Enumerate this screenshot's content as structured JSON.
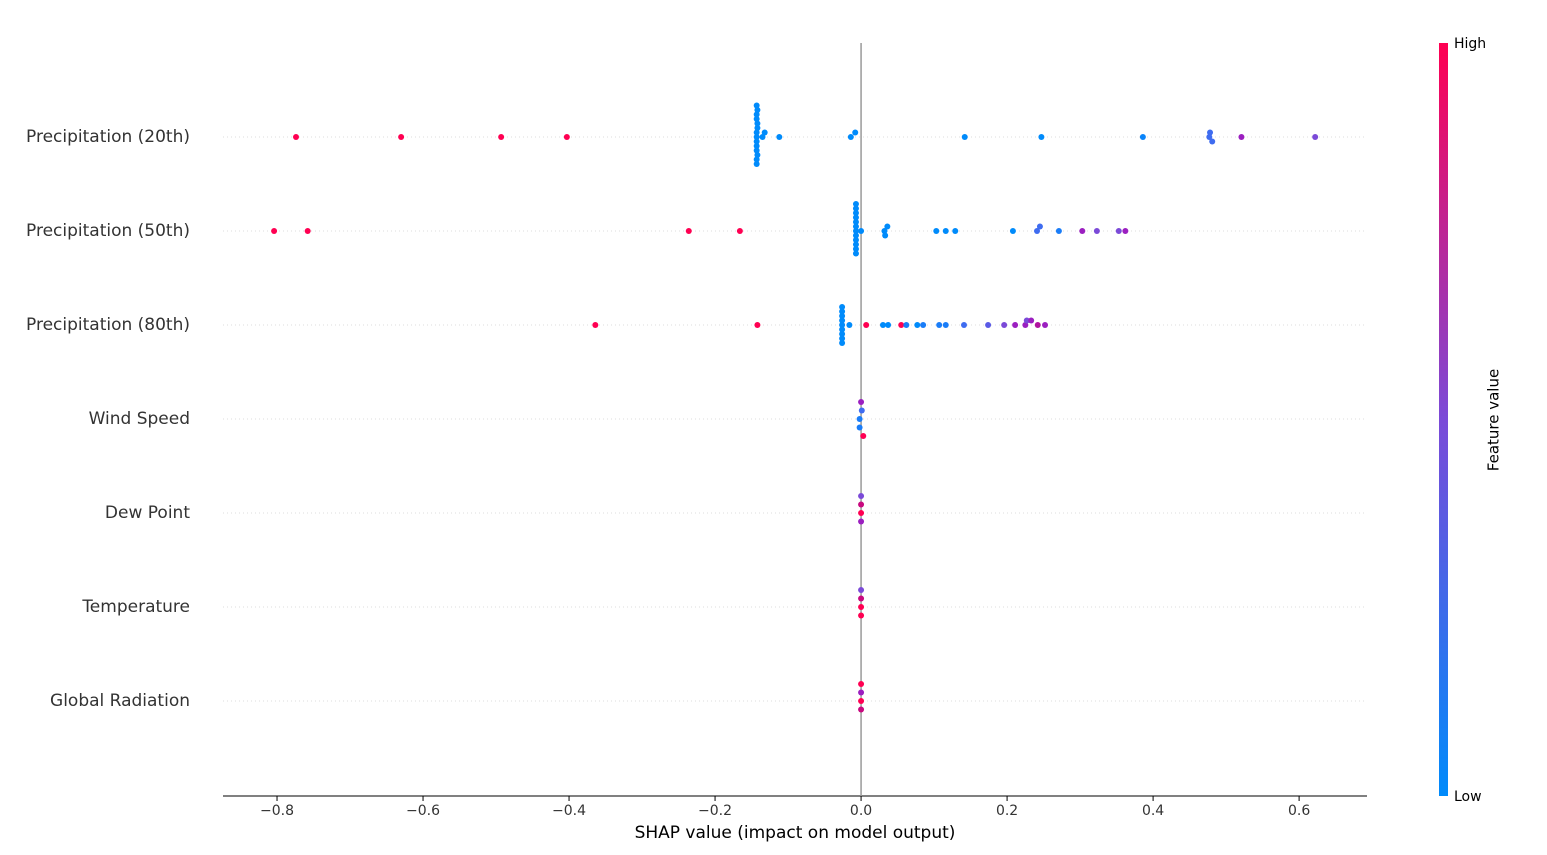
{
  "chart_data": {
    "type": "beeswarm",
    "xlabel": "SHAP value (impact on model output)",
    "xlim": [
      -0.874,
      0.693
    ],
    "xticks": [
      {
        "value": -0.8,
        "label": "−0.8"
      },
      {
        "value": -0.6,
        "label": "−0.6"
      },
      {
        "value": -0.4,
        "label": "−0.4"
      },
      {
        "value": -0.2,
        "label": "−0.2"
      },
      {
        "value": 0,
        "label": "0.0"
      },
      0.2,
      0.4,
      0.6
    ],
    "colorbar": {
      "label": "Feature value",
      "high": "High",
      "low": "Low",
      "low_color": "#008bfb",
      "mid_color": "#7b4ad8",
      "high_color": "#ff0052"
    },
    "series": [
      {
        "name": "Precipitation (20th)",
        "values": [
          -0.774,
          -0.63,
          -0.493,
          -0.403,
          -0.143,
          -0.143,
          -0.143,
          -0.142,
          -0.143,
          -0.142,
          -0.143,
          -0.143,
          -0.142,
          -0.143,
          -0.143,
          -0.142,
          -0.143,
          -0.143,
          -0.135,
          -0.132,
          -0.112,
          -0.014,
          -0.008,
          0.142,
          0.247,
          0.386,
          0.477,
          0.478,
          0.481,
          0.521,
          0.622
        ],
        "colors": [
          "#ff0052",
          "#ff0052",
          "#ff0052",
          "#ff0052",
          "#008bfb",
          "#008bfb",
          "#008bfb",
          "#008bfb",
          "#008bfb",
          "#008bfb",
          "#008bfb",
          "#008bfb",
          "#008bfb",
          "#008bfb",
          "#008bfb",
          "#008bfb",
          "#008bfb",
          "#008bfb",
          "#008bfb",
          "#008bfb",
          "#008bfb",
          "#008bfb",
          "#008bfb",
          "#008bfb",
          "#008bfb",
          "#0a84fa",
          "#3f6cf0",
          "#3f6cf0",
          "#3f6cf0",
          "#9b1fc0",
          "#7b4ad8"
        ]
      },
      {
        "name": "Precipitation (50th)",
        "values": [
          -0.804,
          -0.758,
          -0.236,
          -0.166,
          -0.007,
          -0.007,
          -0.007,
          -0.007,
          -0.007,
          -0.007,
          -0.007,
          -0.007,
          -0.007,
          -0.007,
          -0.007,
          -0.007,
          0.0,
          0.032,
          0.036,
          0.033,
          0.103,
          0.116,
          0.129,
          0.208,
          0.241,
          0.245,
          0.271,
          0.303,
          0.323,
          0.353,
          0.362
        ],
        "colors": [
          "#ff0052",
          "#ff0052",
          "#ff0052",
          "#ff0052",
          "#008bfb",
          "#008bfb",
          "#008bfb",
          "#008bfb",
          "#008bfb",
          "#008bfb",
          "#008bfb",
          "#008bfb",
          "#008bfb",
          "#008bfb",
          "#008bfb",
          "#008bfb",
          "#008bfb",
          "#008bfb",
          "#008bfb",
          "#008bfb",
          "#008bfb",
          "#008bfb",
          "#008bfb",
          "#008bfb",
          "#3f6cf0",
          "#3f6cf0",
          "#1a7df8",
          "#9b1fc0",
          "#7b4ad8",
          "#7b4ad8",
          "#9b1fc0"
        ]
      },
      {
        "name": "Precipitation (80th)",
        "values": [
          -0.364,
          -0.142,
          -0.026,
          -0.026,
          -0.026,
          -0.026,
          -0.026,
          -0.026,
          -0.026,
          -0.026,
          -0.026,
          -0.016,
          0.007,
          0.03,
          0.037,
          0.055,
          0.062,
          0.077,
          0.085,
          0.107,
          0.116,
          0.141,
          0.174,
          0.196,
          0.211,
          0.225,
          0.227,
          0.233,
          0.242,
          0.252
        ],
        "colors": [
          "#ff0052",
          "#ff0052",
          "#008bfb",
          "#008bfb",
          "#008bfb",
          "#008bfb",
          "#008bfb",
          "#008bfb",
          "#008bfb",
          "#008bfb",
          "#008bfb",
          "#008bfb",
          "#ff0052",
          "#008bfb",
          "#008bfb",
          "#ff0052",
          "#1a7df8",
          "#008bfb",
          "#1a7df8",
          "#1a7df8",
          "#1a7df8",
          "#3f6cf0",
          "#5a5ae6",
          "#7b4ad8",
          "#9b1fc0",
          "#9b1fc0",
          "#7b4ad8",
          "#9b1fc0",
          "#b0139f",
          "#9b1fc0"
        ]
      },
      {
        "name": "Wind Speed",
        "values": [
          -0.002,
          0.001,
          -0.002,
          0.0,
          0.003
        ],
        "colors": [
          "#1a7df8",
          "#3f6cf0",
          "#1a7df8",
          "#9b1fc0",
          "#ff0052"
        ]
      },
      {
        "name": "Dew Point",
        "values": [
          0.0,
          0.0,
          0.0,
          0.0
        ],
        "colors": [
          "#ff0052",
          "#c8097f",
          "#9b1fc0",
          "#7b4ad8"
        ]
      },
      {
        "name": "Temperature",
        "values": [
          0.0,
          0.0,
          0.0,
          0.0
        ],
        "colors": [
          "#ff0052",
          "#c8097f",
          "#ff0052",
          "#7b4ad8"
        ]
      },
      {
        "name": "Global Radiation",
        "values": [
          0.0,
          0.0,
          0.0,
          0.0
        ],
        "colors": [
          "#ff0052",
          "#9b1fc0",
          "#c8097f",
          "#ff0052"
        ]
      }
    ]
  }
}
